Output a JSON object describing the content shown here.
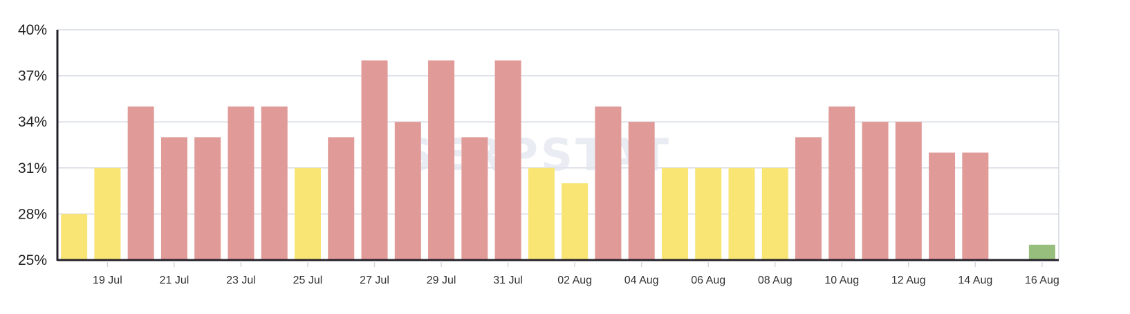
{
  "chart_data": {
    "type": "bar",
    "watermark": "SERPSTAT",
    "x": [
      "18 Jul",
      "19 Jul",
      "20 Jul",
      "21 Jul",
      "22 Jul",
      "23 Jul",
      "24 Jul",
      "25 Jul",
      "26 Jul",
      "27 Jul",
      "28 Jul",
      "29 Jul",
      "30 Jul",
      "31 Jul",
      "01 Aug",
      "02 Aug",
      "03 Aug",
      "04 Aug",
      "05 Aug",
      "06 Aug",
      "07 Aug",
      "08 Aug",
      "09 Aug",
      "10 Aug",
      "11 Aug",
      "12 Aug",
      "13 Aug",
      "14 Aug",
      "15 Aug",
      "16 Aug"
    ],
    "values": [
      28,
      31,
      35,
      33,
      33,
      35,
      35,
      31,
      33,
      38,
      34,
      38,
      33,
      38,
      31,
      30,
      35,
      34,
      31,
      31,
      31,
      31,
      33,
      35,
      34,
      34,
      32,
      32,
      null,
      26
    ],
    "value_unit": "%",
    "x_tick_labels": [
      "19 Jul",
      "21 Jul",
      "23 Jul",
      "25 Jul",
      "27 Jul",
      "29 Jul",
      "31 Jul",
      "02 Aug",
      "04 Aug",
      "06 Aug",
      "08 Aug",
      "10 Aug",
      "12 Aug",
      "14 Aug",
      "16 Aug"
    ],
    "y_tick_labels": [
      "25%",
      "28%",
      "31%",
      "34%",
      "37%",
      "40%"
    ],
    "ylim": [
      25,
      40
    ],
    "grid": true,
    "colors": {
      "high": "#e09a98",
      "medium": "#f8e574",
      "low": "#97be7d",
      "grid": "#d3d7e0",
      "axis": "#23202a"
    },
    "title": "",
    "xlabel": "",
    "ylabel": ""
  }
}
